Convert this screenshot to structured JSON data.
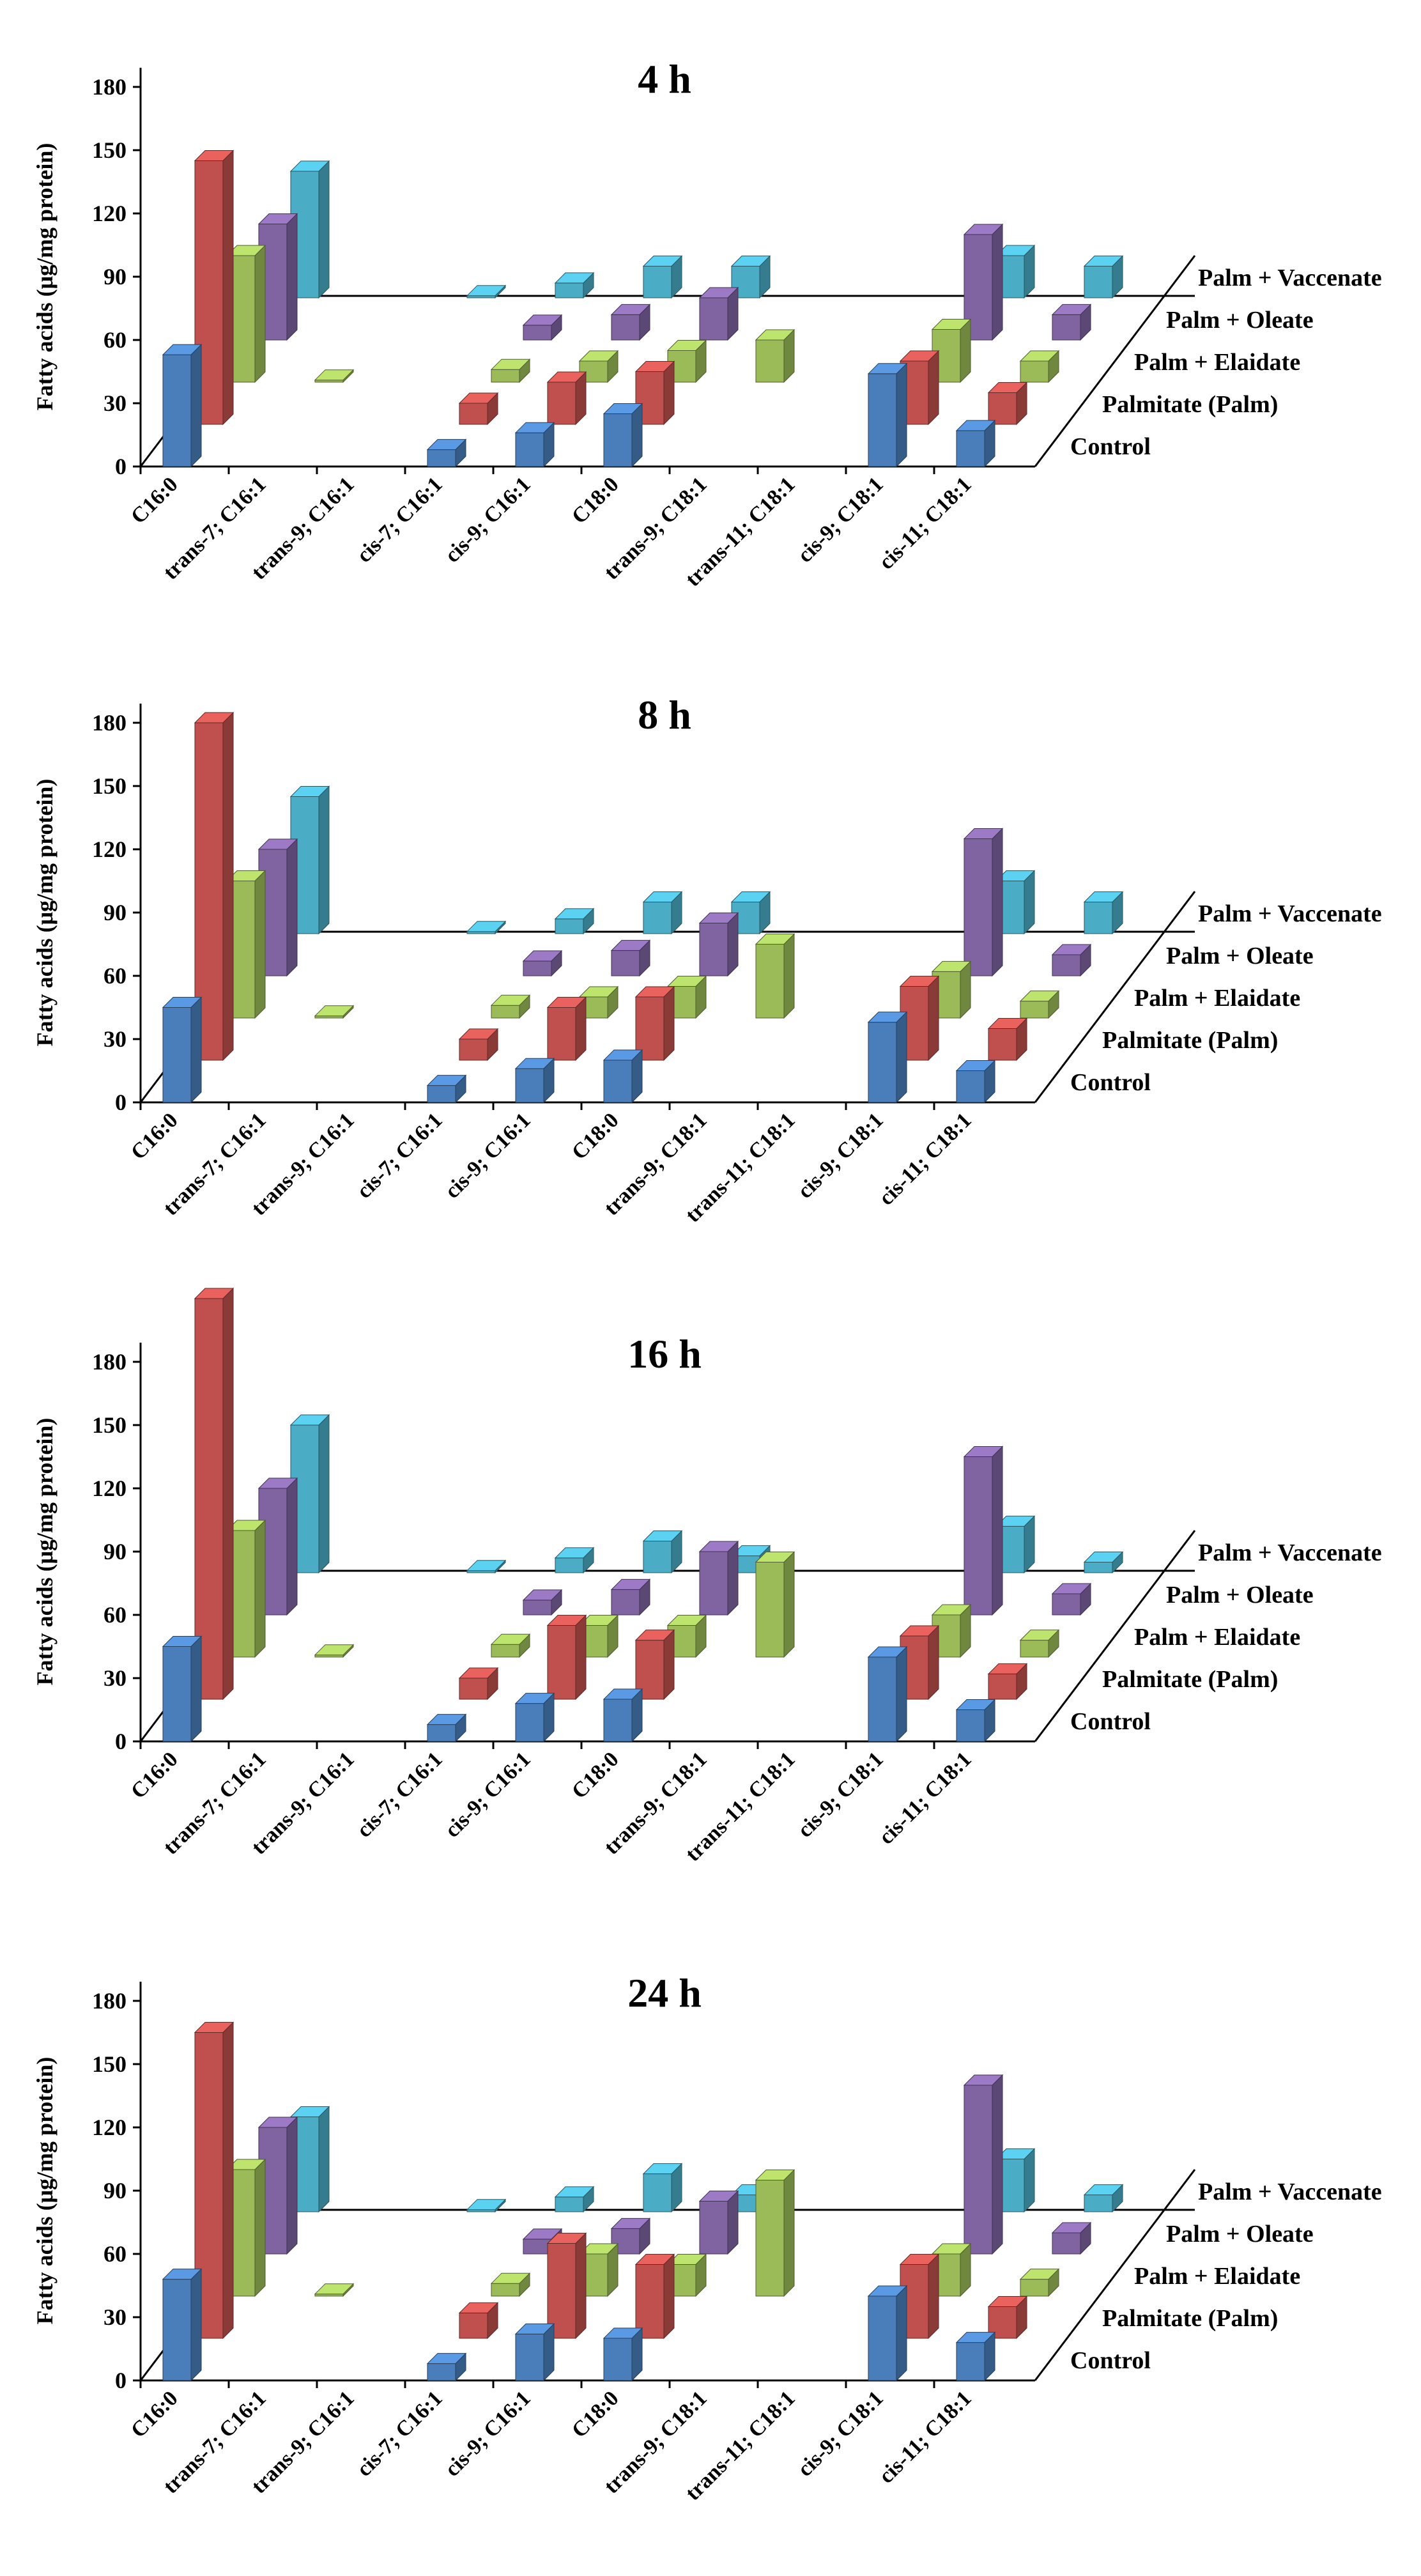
{
  "chart_data": [
    {
      "type": "bar",
      "title": "4 h",
      "ylabel": "Fatty acids (μg/mg protein)",
      "xlabel": "",
      "ylim": [
        0,
        180
      ],
      "yticks": [
        "0",
        "30",
        "60",
        "90",
        "120",
        "150",
        "180"
      ],
      "categories": [
        "C16:0",
        "trans-7; C16:1",
        "trans-9; C16:1",
        "cis-7; C16:1",
        "cis-9; C16:1",
        "C18:0",
        "trans-9; C18:1",
        "trans-11; C18:1",
        "cis-9; C18:1",
        "cis-11; C18:1"
      ],
      "series": [
        {
          "name": "Control",
          "values": [
            53,
            0,
            0,
            8,
            16,
            25,
            0,
            0,
            44,
            17
          ]
        },
        {
          "name": "Palmitate (Palm)",
          "values": [
            125,
            0,
            0,
            10,
            20,
            25,
            0,
            0,
            30,
            15
          ]
        },
        {
          "name": "Palm + Elaidate",
          "values": [
            60,
            1,
            0,
            6,
            10,
            15,
            20,
            0,
            25,
            10
          ]
        },
        {
          "name": "Palm + Oleate",
          "values": [
            55,
            0,
            0,
            7,
            12,
            20,
            0,
            0,
            50,
            12
          ]
        },
        {
          "name": "Palm + Vaccenate",
          "values": [
            60,
            0,
            1,
            7,
            15,
            15,
            0,
            0,
            20,
            15
          ]
        }
      ]
    },
    {
      "type": "bar",
      "title": "8 h",
      "ylabel": "Fatty acids (μg/mg protein)",
      "xlabel": "",
      "ylim": [
        0,
        180
      ],
      "yticks": [
        "0",
        "30",
        "60",
        "90",
        "120",
        "150",
        "180"
      ],
      "categories": [
        "C16:0",
        "trans-7; C16:1",
        "trans-9; C16:1",
        "cis-7; C16:1",
        "cis-9; C16:1",
        "C18:0",
        "trans-9; C18:1",
        "trans-11; C18:1",
        "cis-9; C18:1",
        "cis-11; C18:1"
      ],
      "series": [
        {
          "name": "Control",
          "values": [
            45,
            0,
            0,
            8,
            16,
            20,
            0,
            0,
            38,
            15
          ]
        },
        {
          "name": "Palmitate (Palm)",
          "values": [
            160,
            0,
            0,
            10,
            25,
            30,
            0,
            0,
            35,
            15
          ]
        },
        {
          "name": "Palm + Elaidate",
          "values": [
            65,
            1,
            0,
            6,
            10,
            15,
            35,
            0,
            22,
            8
          ]
        },
        {
          "name": "Palm + Oleate",
          "values": [
            60,
            0,
            0,
            7,
            12,
            25,
            0,
            0,
            65,
            10
          ]
        },
        {
          "name": "Palm + Vaccenate",
          "values": [
            65,
            0,
            1,
            7,
            15,
            15,
            0,
            0,
            25,
            15
          ]
        }
      ]
    },
    {
      "type": "bar",
      "title": "16 h",
      "ylabel": "Fatty acids (μg/mg protein)",
      "xlabel": "",
      "ylim": [
        0,
        180
      ],
      "yticks": [
        "0",
        "30",
        "60",
        "90",
        "120",
        "150",
        "180"
      ],
      "categories": [
        "C16:0",
        "trans-7; C16:1",
        "trans-9; C16:1",
        "cis-7; C16:1",
        "cis-9; C16:1",
        "C18:0",
        "trans-9; C18:1",
        "trans-11; C18:1",
        "cis-9; C18:1",
        "cis-11; C18:1"
      ],
      "series": [
        {
          "name": "Control",
          "values": [
            45,
            0,
            0,
            8,
            18,
            20,
            0,
            0,
            40,
            15
          ]
        },
        {
          "name": "Palmitate (Palm)",
          "values": [
            190,
            0,
            0,
            10,
            35,
            28,
            0,
            0,
            30,
            12
          ]
        },
        {
          "name": "Palm + Elaidate",
          "values": [
            60,
            1,
            0,
            6,
            15,
            15,
            45,
            0,
            20,
            8
          ]
        },
        {
          "name": "Palm + Oleate",
          "values": [
            60,
            0,
            0,
            7,
            12,
            30,
            0,
            0,
            75,
            10
          ]
        },
        {
          "name": "Palm + Vaccenate",
          "values": [
            70,
            0,
            1,
            7,
            15,
            8,
            0,
            0,
            22,
            5
          ]
        }
      ]
    },
    {
      "type": "bar",
      "title": "24 h",
      "ylabel": "Fatty acids (μg/mg protein)",
      "xlabel": "",
      "ylim": [
        0,
        180
      ],
      "yticks": [
        "0",
        "30",
        "60",
        "90",
        "120",
        "150",
        "180"
      ],
      "categories": [
        "C16:0",
        "trans-7; C16:1",
        "trans-9; C16:1",
        "cis-7; C16:1",
        "cis-9; C16:1",
        "C18:0",
        "trans-9; C18:1",
        "trans-11; C18:1",
        "cis-9; C18:1",
        "cis-11; C18:1"
      ],
      "series": [
        {
          "name": "Control",
          "values": [
            48,
            0,
            0,
            8,
            22,
            20,
            0,
            0,
            40,
            18
          ]
        },
        {
          "name": "Palmitate (Palm)",
          "values": [
            145,
            0,
            0,
            12,
            45,
            35,
            0,
            0,
            35,
            15
          ]
        },
        {
          "name": "Palm + Elaidate",
          "values": [
            60,
            1,
            0,
            6,
            20,
            15,
            55,
            0,
            20,
            8
          ]
        },
        {
          "name": "Palm + Oleate",
          "values": [
            60,
            0,
            0,
            7,
            12,
            25,
            0,
            0,
            80,
            10
          ]
        },
        {
          "name": "Palm + Vaccenate",
          "values": [
            45,
            0,
            1,
            7,
            18,
            8,
            0,
            0,
            25,
            8
          ]
        }
      ]
    }
  ],
  "colors": {
    "Control": "#4A7EBB",
    "Palmitate (Palm)": "#C0504D",
    "Palm + Elaidate": "#9BBB59",
    "Palm + Oleate": "#8064A2",
    "Palm + Vaccenate": "#4BACC6"
  }
}
